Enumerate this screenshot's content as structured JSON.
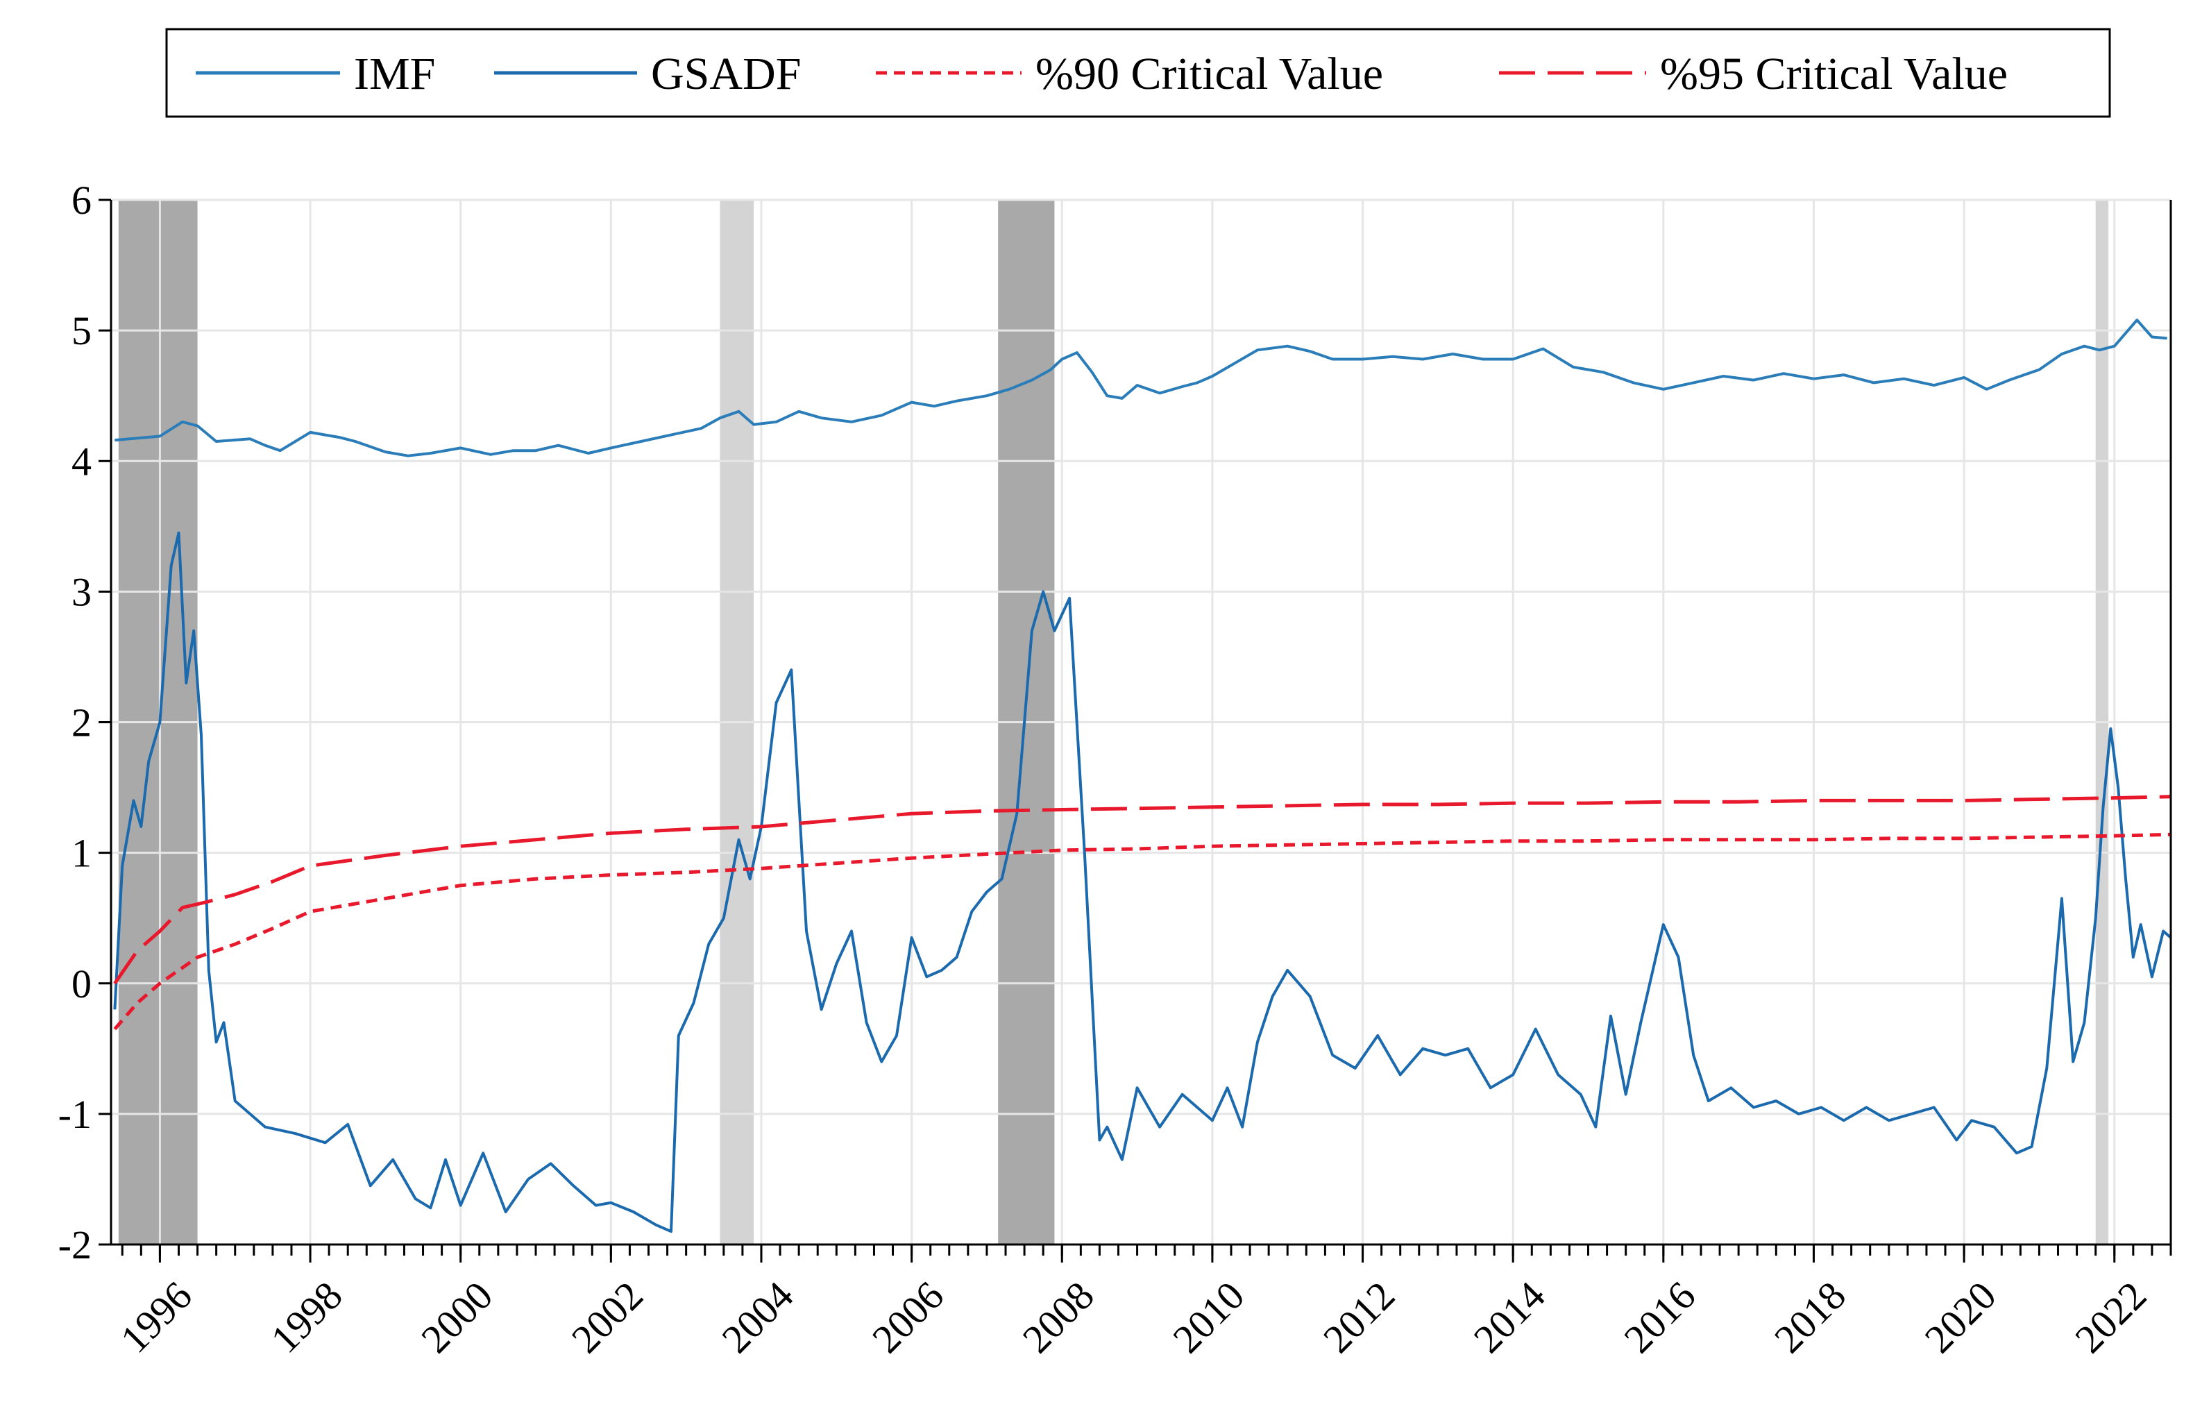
{
  "colors": {
    "imf": "#2A7DB8",
    "gsadf": "#1C6AAE",
    "cv90": "#E8192C",
    "cv95": "#E8192C",
    "band_dark": "#A9A9A9",
    "band_light": "#D4D4D4",
    "grid": "#E6E6E6"
  },
  "chart_data": {
    "type": "line",
    "title": "",
    "xlabel": "",
    "ylabel": "",
    "ylim": [
      -2,
      6
    ],
    "xlim": [
      1995.35,
      2022.75
    ],
    "yticks": [
      "-2",
      "-1",
      "0",
      "1",
      "2",
      "3",
      "4",
      "5",
      "6"
    ],
    "xticks": [
      "1996",
      "1998",
      "2000",
      "2002",
      "2004",
      "2006",
      "2008",
      "2010",
      "2012",
      "2014",
      "2016",
      "2018",
      "2020",
      "2022"
    ],
    "grid": true,
    "legend": {
      "position": "top",
      "items": [
        {
          "label": "IMF",
          "style": "solid",
          "series": "imf"
        },
        {
          "label": "GSADF",
          "style": "solid",
          "series": "gsadf"
        },
        {
          "label": "%90 Critical Value",
          "style": "short-dash",
          "series": "cv90"
        },
        {
          "label": "%95 Critical Value",
          "style": "long-dash",
          "series": "cv95"
        }
      ]
    },
    "shaded_periods": [
      {
        "start": 1995.45,
        "end": 1996.5,
        "shade": "dark"
      },
      {
        "start": 2003.45,
        "end": 2003.9,
        "shade": "light"
      },
      {
        "start": 2007.15,
        "end": 2007.9,
        "shade": "dark"
      },
      {
        "start": 2021.75,
        "end": 2021.92,
        "shade": "light"
      }
    ],
    "series": [
      {
        "key": "imf",
        "name": "IMF",
        "x": [
          1995.4,
          1996.0,
          1996.3,
          1996.5,
          1996.75,
          1997.2,
          1997.4,
          1997.6,
          1998.0,
          1998.4,
          1998.6,
          1999.0,
          1999.3,
          1999.6,
          2000.0,
          2000.4,
          2000.7,
          2001.0,
          2001.3,
          2001.7,
          2002.0,
          2002.4,
          2002.8,
          2003.2,
          2003.45,
          2003.7,
          2003.9,
          2004.2,
          2004.5,
          2004.8,
          2005.2,
          2005.6,
          2006.0,
          2006.3,
          2006.6,
          2007.0,
          2007.3,
          2007.6,
          2007.85,
          2008.0,
          2008.2,
          2008.4,
          2008.6,
          2008.8,
          2009.0,
          2009.3,
          2009.6,
          2009.8,
          2010.0,
          2010.3,
          2010.6,
          2011.0,
          2011.3,
          2011.6,
          2012.0,
          2012.4,
          2012.8,
          2013.2,
          2013.6,
          2014.0,
          2014.4,
          2014.8,
          2015.2,
          2015.6,
          2016.0,
          2016.4,
          2016.8,
          2017.2,
          2017.6,
          2018.0,
          2018.4,
          2018.8,
          2019.2,
          2019.6,
          2020.0,
          2020.3,
          2020.6,
          2021.0,
          2021.3,
          2021.6,
          2021.8,
          2022.0,
          2022.3,
          2022.5,
          2022.7
        ],
        "values": [
          4.16,
          4.19,
          4.3,
          4.27,
          4.15,
          4.17,
          4.12,
          4.08,
          4.22,
          4.18,
          4.15,
          4.07,
          4.04,
          4.06,
          4.1,
          4.05,
          4.08,
          4.08,
          4.12,
          4.06,
          4.1,
          4.15,
          4.2,
          4.25,
          4.33,
          4.38,
          4.28,
          4.3,
          4.38,
          4.33,
          4.3,
          4.35,
          4.45,
          4.42,
          4.46,
          4.5,
          4.55,
          4.62,
          4.7,
          4.78,
          4.83,
          4.68,
          4.5,
          4.48,
          4.58,
          4.52,
          4.57,
          4.6,
          4.65,
          4.75,
          4.85,
          4.88,
          4.84,
          4.78,
          4.78,
          4.8,
          4.78,
          4.82,
          4.78,
          4.78,
          4.86,
          4.72,
          4.68,
          4.6,
          4.55,
          4.6,
          4.65,
          4.62,
          4.67,
          4.63,
          4.66,
          4.6,
          4.63,
          4.58,
          4.64,
          4.55,
          4.62,
          4.7,
          4.82,
          4.88,
          4.85,
          4.88,
          5.08,
          4.95,
          4.94
        ]
      },
      {
        "key": "gsadf",
        "name": "GSADF",
        "x": [
          1995.4,
          1995.5,
          1995.65,
          1995.75,
          1995.85,
          1996.0,
          1996.15,
          1996.25,
          1996.35,
          1996.45,
          1996.55,
          1996.65,
          1996.75,
          1996.85,
          1997.0,
          1997.4,
          1997.8,
          1998.2,
          1998.5,
          1998.8,
          1999.1,
          1999.4,
          1999.6,
          1999.8,
          2000.0,
          2000.3,
          2000.6,
          2000.9,
          2001.2,
          2001.5,
          2001.8,
          2002.0,
          2002.3,
          2002.6,
          2002.8,
          2002.9,
          2003.1,
          2003.3,
          2003.5,
          2003.7,
          2003.85,
          2004.0,
          2004.2,
          2004.4,
          2004.6,
          2004.8,
          2005.0,
          2005.2,
          2005.4,
          2005.6,
          2005.8,
          2006.0,
          2006.2,
          2006.4,
          2006.6,
          2006.8,
          2007.0,
          2007.2,
          2007.4,
          2007.6,
          2007.75,
          2007.9,
          2008.1,
          2008.3,
          2008.5,
          2008.6,
          2008.8,
          2009.0,
          2009.3,
          2009.6,
          2010.0,
          2010.2,
          2010.4,
          2010.6,
          2010.8,
          2011.0,
          2011.3,
          2011.6,
          2011.9,
          2012.2,
          2012.5,
          2012.8,
          2013.1,
          2013.4,
          2013.7,
          2014.0,
          2014.3,
          2014.6,
          2014.9,
          2015.1,
          2015.3,
          2015.5,
          2015.7,
          2016.0,
          2016.2,
          2016.4,
          2016.6,
          2016.9,
          2017.2,
          2017.5,
          2017.8,
          2018.1,
          2018.4,
          2018.7,
          2019.0,
          2019.3,
          2019.6,
          2019.9,
          2020.1,
          2020.4,
          2020.7,
          2020.9,
          2021.1,
          2021.3,
          2021.45,
          2021.6,
          2021.75,
          2021.85,
          2021.95,
          2022.05,
          2022.15,
          2022.25,
          2022.35,
          2022.5,
          2022.65,
          2022.75
        ],
        "values": [
          -0.2,
          0.9,
          1.4,
          1.2,
          1.7,
          2.0,
          3.2,
          3.45,
          2.3,
          2.7,
          1.9,
          0.1,
          -0.45,
          -0.3,
          -0.9,
          -1.1,
          -1.15,
          -1.22,
          -1.08,
          -1.55,
          -1.35,
          -1.65,
          -1.72,
          -1.35,
          -1.7,
          -1.3,
          -1.75,
          -1.5,
          -1.38,
          -1.55,
          -1.7,
          -1.68,
          -1.75,
          -1.85,
          -1.9,
          -0.4,
          -0.15,
          0.3,
          0.5,
          1.1,
          0.8,
          1.2,
          2.15,
          2.4,
          0.4,
          -0.2,
          0.15,
          0.4,
          -0.3,
          -0.6,
          -0.4,
          0.35,
          0.05,
          0.1,
          0.2,
          0.55,
          0.7,
          0.8,
          1.3,
          2.7,
          3.0,
          2.7,
          2.95,
          1.0,
          -1.2,
          -1.1,
          -1.35,
          -0.8,
          -1.1,
          -0.85,
          -1.05,
          -0.8,
          -1.1,
          -0.45,
          -0.1,
          0.1,
          -0.1,
          -0.55,
          -0.65,
          -0.4,
          -0.7,
          -0.5,
          -0.55,
          -0.5,
          -0.8,
          -0.7,
          -0.35,
          -0.7,
          -0.85,
          -1.1,
          -0.25,
          -0.85,
          -0.3,
          0.45,
          0.2,
          -0.55,
          -0.9,
          -0.8,
          -0.95,
          -0.9,
          -1.0,
          -0.95,
          -1.05,
          -0.95,
          -1.05,
          -1.0,
          -0.95,
          -1.2,
          -1.05,
          -1.1,
          -1.3,
          -1.25,
          -0.65,
          0.65,
          -0.6,
          -0.3,
          0.5,
          1.35,
          1.95,
          1.5,
          0.8,
          0.2,
          0.45,
          0.05,
          0.4,
          0.35
        ],
        "style": "solid"
      },
      {
        "key": "cv90",
        "name": "%90 Critical Value",
        "x": [
          1995.4,
          1995.7,
          1996.0,
          1996.5,
          1997.0,
          1997.5,
          1998.0,
          1999.0,
          2000.0,
          2001.0,
          2002.0,
          2003.0,
          2004.0,
          2005.0,
          2006.0,
          2007.0,
          2008.0,
          2009.0,
          2010.0,
          2011.0,
          2012.0,
          2013.0,
          2014.0,
          2015.0,
          2016.0,
          2017.0,
          2018.0,
          2019.0,
          2020.0,
          2021.0,
          2022.0,
          2022.75
        ],
        "values": [
          -0.35,
          -0.15,
          0.0,
          0.2,
          0.3,
          0.42,
          0.55,
          0.65,
          0.75,
          0.8,
          0.83,
          0.85,
          0.88,
          0.92,
          0.96,
          0.99,
          1.02,
          1.03,
          1.05,
          1.06,
          1.07,
          1.08,
          1.09,
          1.09,
          1.1,
          1.1,
          1.1,
          1.11,
          1.11,
          1.12,
          1.13,
          1.14
        ],
        "style": "short-dash"
      },
      {
        "key": "cv95",
        "name": "%95 Critical Value",
        "x": [
          1995.4,
          1995.7,
          1996.0,
          1996.3,
          1996.6,
          1997.0,
          1997.5,
          1998.0,
          1999.0,
          2000.0,
          2001.0,
          2002.0,
          2003.0,
          2004.0,
          2005.0,
          2006.0,
          2007.0,
          2008.0,
          2009.0,
          2010.0,
          2011.0,
          2012.0,
          2013.0,
          2014.0,
          2015.0,
          2016.0,
          2017.0,
          2018.0,
          2019.0,
          2020.0,
          2021.0,
          2022.0,
          2022.75
        ],
        "values": [
          0.0,
          0.25,
          0.4,
          0.58,
          0.62,
          0.68,
          0.78,
          0.9,
          0.98,
          1.05,
          1.1,
          1.15,
          1.18,
          1.2,
          1.25,
          1.3,
          1.32,
          1.33,
          1.34,
          1.35,
          1.36,
          1.37,
          1.37,
          1.38,
          1.38,
          1.39,
          1.39,
          1.4,
          1.4,
          1.4,
          1.41,
          1.42,
          1.43
        ],
        "style": "long-dash"
      }
    ]
  }
}
